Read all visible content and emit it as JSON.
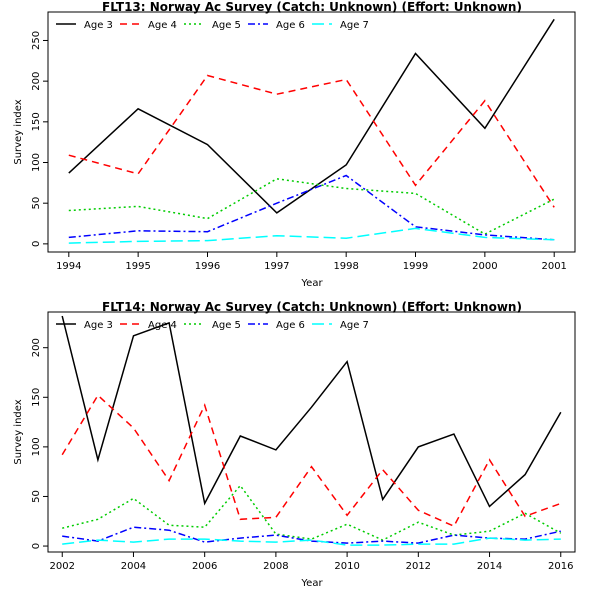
{
  "chart_data": [
    {
      "type": "line",
      "title": "FLT13: Norway Ac Survey (Catch: Unknown) (Effort: Unknown)",
      "xlabel": "Year",
      "ylabel": "Survey index",
      "x": [
        1994,
        1995,
        1996,
        1997,
        1998,
        1999,
        2000,
        2001
      ],
      "xlim": [
        1993.7,
        2001.3
      ],
      "ylim": [
        -10,
        285
      ],
      "xticks": [
        1994,
        1995,
        1996,
        1997,
        1998,
        1999,
        2000,
        2001
      ],
      "yticks": [
        0,
        50,
        100,
        150,
        200,
        250
      ],
      "legend_position": "top-left",
      "series": [
        {
          "name": "Age 3",
          "color": "#000000",
          "dash": "solid",
          "values": [
            87,
            166,
            122,
            38,
            97,
            234,
            142,
            276
          ]
        },
        {
          "name": "Age 4",
          "color": "#ff0000",
          "dash": "dashed",
          "values": [
            109,
            86,
            207,
            184,
            202,
            72,
            176,
            45
          ]
        },
        {
          "name": "Age 5",
          "color": "#00cc00",
          "dash": "dotted",
          "values": [
            41,
            46,
            31,
            80,
            68,
            62,
            12,
            55
          ]
        },
        {
          "name": "Age 6",
          "color": "#0000ff",
          "dash": "dashdot",
          "values": [
            8,
            16,
            15,
            50,
            84,
            21,
            11,
            5
          ]
        },
        {
          "name": "Age 7",
          "color": "#00ffff",
          "dash": "longdash",
          "values": [
            1,
            3,
            4,
            10,
            7,
            19,
            8,
            5
          ]
        }
      ]
    },
    {
      "type": "line",
      "title": "FLT14: Norway Ac Survey (Catch: Unknown) (Effort: Unknown)",
      "xlabel": "Year",
      "ylabel": "Survey index",
      "x": [
        2002,
        2003,
        2004,
        2005,
        2006,
        2007,
        2008,
        2009,
        2010,
        2011,
        2012,
        2013,
        2014,
        2015,
        2016
      ],
      "xlim": [
        2001.6,
        2016.4
      ],
      "ylim": [
        -6,
        236
      ],
      "xticks": [
        2002,
        2004,
        2006,
        2008,
        2010,
        2012,
        2014,
        2016
      ],
      "yticks": [
        0,
        50,
        100,
        150,
        200
      ],
      "legend_position": "top-left",
      "series": [
        {
          "name": "Age 3",
          "color": "#000000",
          "dash": "solid",
          "values": [
            232,
            87,
            212,
            225,
            43,
            111,
            97,
            140,
            186,
            47,
            100,
            113,
            40,
            72,
            135
          ]
        },
        {
          "name": "Age 4",
          "color": "#ff0000",
          "dash": "dashed",
          "values": [
            92,
            152,
            119,
            66,
            142,
            27,
            29,
            80,
            31,
            77,
            36,
            20,
            87,
            30,
            43
          ]
        },
        {
          "name": "Age 5",
          "color": "#00cc00",
          "dash": "dotted",
          "values": [
            18,
            27,
            48,
            21,
            19,
            61,
            12,
            7,
            22,
            6,
            24,
            11,
            15,
            33,
            13
          ]
        },
        {
          "name": "Age 6",
          "color": "#0000ff",
          "dash": "dashdot",
          "values": [
            10,
            5,
            19,
            16,
            4,
            8,
            11,
            5,
            3,
            5,
            3,
            11,
            8,
            7,
            15
          ]
        },
        {
          "name": "Age 7",
          "color": "#00ffff",
          "dash": "longdash",
          "values": [
            2,
            6,
            4,
            7,
            7,
            5,
            4,
            6,
            1,
            1,
            2,
            2,
            8,
            6,
            7
          ]
        }
      ]
    }
  ]
}
